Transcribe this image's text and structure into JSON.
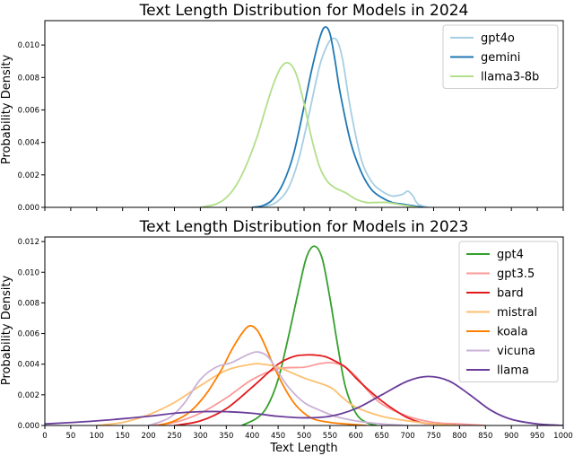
{
  "chart_data": [
    {
      "type": "line",
      "title": "Text Length Distribution for Models in 2024",
      "xlabel": "",
      "ylabel": "Probability Density",
      "xlim": [
        0,
        1000
      ],
      "ylim": [
        0,
        0.0115
      ],
      "yticks": [
        "0.000",
        "0.002",
        "0.004",
        "0.006",
        "0.008",
        "0.010"
      ],
      "ytick_values": [
        0,
        0.002,
        0.004,
        0.006,
        0.008,
        0.01
      ],
      "xticks": [],
      "legend_position": "top-right",
      "grid": false,
      "series": [
        {
          "name": "gpt4o",
          "color": "#a6cee3",
          "x": [
            400,
            430,
            450,
            470,
            490,
            510,
            530,
            545,
            555,
            565,
            575,
            590,
            610,
            630,
            650,
            670,
            690,
            700,
            710,
            720,
            740
          ],
          "y": [
            0,
            0.0001,
            0.0004,
            0.0012,
            0.003,
            0.0058,
            0.0087,
            0.01,
            0.0104,
            0.0102,
            0.009,
            0.006,
            0.003,
            0.0016,
            0.001,
            0.0007,
            0.0008,
            0.001,
            0.0007,
            0.0002,
            0
          ]
        },
        {
          "name": "gemini",
          "color": "#1f78b4",
          "x": [
            400,
            420,
            440,
            460,
            480,
            500,
            515,
            530,
            540,
            550,
            560,
            570,
            590,
            610,
            630,
            650,
            670,
            690,
            710,
            730
          ],
          "y": [
            0,
            0.0001,
            0.0005,
            0.0015,
            0.0033,
            0.0062,
            0.0085,
            0.0104,
            0.0111,
            0.0107,
            0.009,
            0.007,
            0.004,
            0.0022,
            0.0011,
            0.0006,
            0.0003,
            0.0002,
            0.0001,
            0
          ]
        },
        {
          "name": "llama3-8b",
          "color": "#b2df8a",
          "x": [
            300,
            330,
            350,
            370,
            390,
            410,
            425,
            440,
            455,
            470,
            485,
            500,
            515,
            530,
            545,
            560,
            580,
            600,
            620,
            640,
            660,
            680,
            700,
            720
          ],
          "y": [
            0,
            0.0002,
            0.0006,
            0.0014,
            0.0027,
            0.0044,
            0.006,
            0.0075,
            0.0086,
            0.0089,
            0.0082,
            0.0064,
            0.0042,
            0.0025,
            0.0016,
            0.0012,
            0.0009,
            0.0005,
            0.0003,
            0.0003,
            0.0003,
            0.0002,
            0.0001,
            0
          ]
        }
      ]
    },
    {
      "type": "line",
      "title": "Text Length Distribution for Models in 2023",
      "xlabel": "Text Length",
      "ylabel": "Probability Density",
      "xlim": [
        0,
        1000
      ],
      "ylim": [
        0,
        0.0123
      ],
      "yticks": [
        "0.000",
        "0.002",
        "0.004",
        "0.006",
        "0.008",
        "0.010",
        "0.012"
      ],
      "ytick_values": [
        0,
        0.002,
        0.004,
        0.006,
        0.008,
        0.01,
        0.012
      ],
      "xticks": [
        "0",
        "50",
        "100",
        "150",
        "200",
        "250",
        "300",
        "350",
        "400",
        "450",
        "500",
        "550",
        "600",
        "650",
        "700",
        "750",
        "800",
        "850",
        "900",
        "950",
        "1000"
      ],
      "xtick_values": [
        0,
        50,
        100,
        150,
        200,
        250,
        300,
        350,
        400,
        450,
        500,
        550,
        600,
        650,
        700,
        750,
        800,
        850,
        900,
        950,
        1000
      ],
      "legend_position": "top-right",
      "grid": false,
      "series": [
        {
          "name": "gpt4",
          "color": "#33a02c",
          "x": [
            380,
            410,
            430,
            450,
            470,
            490,
            505,
            520,
            535,
            550,
            565,
            580,
            600,
            620,
            640
          ],
          "y": [
            0,
            0.0005,
            0.0013,
            0.003,
            0.0058,
            0.0089,
            0.011,
            0.0117,
            0.0109,
            0.0083,
            0.0052,
            0.0025,
            0.0008,
            0.0002,
            0
          ]
        },
        {
          "name": "gpt3.5",
          "color": "#fb9a99",
          "x": [
            200,
            250,
            300,
            350,
            400,
            450,
            500,
            525,
            550,
            575,
            600,
            625,
            650,
            700,
            750,
            800,
            850
          ],
          "y": [
            0,
            0.0002,
            0.0008,
            0.0018,
            0.003,
            0.0037,
            0.0038,
            0.004,
            0.0041,
            0.0039,
            0.0032,
            0.0022,
            0.0014,
            0.0006,
            0.0002,
            0.0001,
            0
          ]
        },
        {
          "name": "bard",
          "color": "#e31a1c",
          "x": [
            250,
            300,
            350,
            400,
            450,
            480,
            500,
            520,
            540,
            560,
            580,
            600,
            625,
            650,
            675,
            700,
            725,
            750,
            800
          ],
          "y": [
            0,
            0.0003,
            0.0011,
            0.0025,
            0.004,
            0.0045,
            0.0046,
            0.0046,
            0.0045,
            0.0042,
            0.0038,
            0.0031,
            0.0023,
            0.0016,
            0.001,
            0.0005,
            0.0002,
            0.0001,
            0
          ]
        },
        {
          "name": "mistral",
          "color": "#fdbf6f",
          "x": [
            100,
            150,
            200,
            250,
            300,
            350,
            400,
            420,
            450,
            500,
            550,
            575,
            600,
            650,
            700,
            750,
            800
          ],
          "y": [
            0,
            0.0002,
            0.0007,
            0.0015,
            0.0026,
            0.0036,
            0.004,
            0.004,
            0.0038,
            0.0031,
            0.0025,
            0.0018,
            0.0012,
            0.0006,
            0.0003,
            0.0001,
            0
          ]
        },
        {
          "name": "koala",
          "color": "#ff7f00",
          "x": [
            220,
            250,
            280,
            310,
            340,
            360,
            380,
            395,
            410,
            425,
            440,
            460,
            480,
            500,
            520,
            550,
            580,
            620
          ],
          "y": [
            0,
            0.0003,
            0.0009,
            0.002,
            0.0036,
            0.0049,
            0.006,
            0.0065,
            0.0062,
            0.0052,
            0.004,
            0.0026,
            0.0015,
            0.0008,
            0.0004,
            0.0002,
            0.0001,
            0
          ]
        },
        {
          "name": "vicuna",
          "color": "#cab2d6",
          "x": [
            200,
            240,
            270,
            300,
            330,
            360,
            390,
            410,
            430,
            450,
            470,
            500,
            530,
            560,
            600,
            650,
            700
          ],
          "y": [
            0,
            0.0005,
            0.0015,
            0.003,
            0.0038,
            0.0041,
            0.0046,
            0.0048,
            0.0045,
            0.0035,
            0.0025,
            0.0015,
            0.001,
            0.0006,
            0.0003,
            0.0001,
            0
          ]
        },
        {
          "name": "llama",
          "color": "#6a3d9a",
          "x": [
            0,
            100,
            200,
            250,
            300,
            350,
            400,
            450,
            500,
            550,
            600,
            650,
            700,
            740,
            780,
            820,
            860,
            900,
            950,
            1000
          ],
          "y": [
            0.0001,
            0.0003,
            0.0006,
            0.0008,
            0.0009,
            0.0009,
            0.0008,
            0.0006,
            0.0005,
            0.0006,
            0.0011,
            0.002,
            0.0029,
            0.0032,
            0.0029,
            0.002,
            0.001,
            0.0004,
            0.0001,
            0
          ]
        }
      ]
    }
  ]
}
